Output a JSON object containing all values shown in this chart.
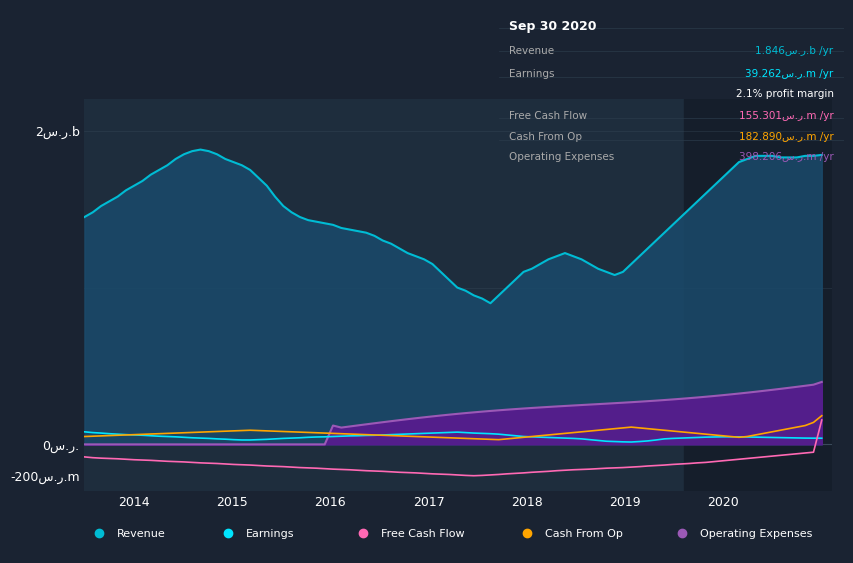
{
  "bg_color": "#1a2332",
  "plot_bg_color": "#1e2d3d",
  "darker_bg": "#151e2b",
  "title": "Sep 30 2020",
  "table_data": {
    "Revenue": {
      "label": "Revenue",
      "value": "1.846س.ر.b /yr",
      "color": "#00bcd4"
    },
    "Earnings": {
      "label": "Earnings",
      "value": "39.262س.ر.m /yr",
      "color": "#00e5ff"
    },
    "profit_margin": {
      "label": "",
      "value": "2.1% profit margin",
      "color": "#ffffff"
    },
    "Free Cash Flow": {
      "label": "Free Cash Flow",
      "value": "155.301س.ر.m /yr",
      "color": "#ff69b4"
    },
    "Cash From Op": {
      "label": "Cash From Op",
      "value": "182.890س.ر.m /yr",
      "color": "#ffa500"
    },
    "Operating Expenses": {
      "label": "Operating Expenses",
      "value": "398.206س.ر.m /yr",
      "color": "#9b59b6"
    }
  },
  "ylabel_top": "2س.ر.b",
  "ylabel_zero": "0س.ر.",
  "ylabel_neg": "-200س.ر.m",
  "x_labels": [
    "2014",
    "2015",
    "2016",
    "2017",
    "2018",
    "2019",
    "2020"
  ],
  "revenue_color": "#00bcd4",
  "earnings_color": "#00e5ff",
  "fcf_color": "#ff69b4",
  "cashfromop_color": "#ffa500",
  "opex_color": "#9b59b6",
  "revenue_fill": "#1a4a6b",
  "opex_fill": "#5a1a90",
  "legend": [
    {
      "label": "Revenue",
      "color": "#00bcd4"
    },
    {
      "label": "Earnings",
      "color": "#00e5ff"
    },
    {
      "label": "Free Cash Flow",
      "color": "#ff69b4"
    },
    {
      "label": "Cash From Op",
      "color": "#ffa500"
    },
    {
      "label": "Operating Expenses",
      "color": "#9b59b6"
    }
  ]
}
